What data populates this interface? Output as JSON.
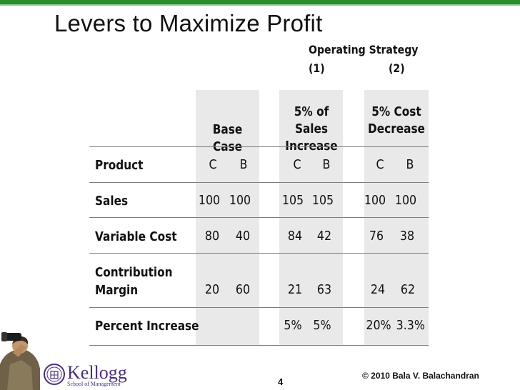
{
  "slide": {
    "title": "Levers to Maximize Profit",
    "page_number": "4",
    "copyright": "© 2010 Bala V. Balachandran",
    "accent_color": "#2e8b2e"
  },
  "strategy_header": {
    "label": "Operating Strategy",
    "col1": "(1)",
    "col2": "(2)"
  },
  "logo": {
    "name": "Kellogg",
    "subtitle": "School of Management"
  },
  "table": {
    "groups": [
      {
        "line1": "Base Case",
        "line2": ""
      },
      {
        "line1": "5% of Sales",
        "line2": "Increase"
      },
      {
        "line1": "5% Cost",
        "line2": "Decrease"
      }
    ],
    "rows": [
      {
        "label": [
          "Product"
        ],
        "values": [
          "C",
          "B",
          "C",
          "B",
          "C",
          "B"
        ]
      },
      {
        "label": [
          "Sales"
        ],
        "values": [
          "100",
          "100",
          "105",
          "105",
          "100",
          "100"
        ]
      },
      {
        "label": [
          "Variable Cost"
        ],
        "values": [
          "80",
          "40",
          "84",
          "42",
          "76",
          "38"
        ]
      },
      {
        "label": [
          "Contribution",
          "Margin"
        ],
        "values": [
          "20",
          "60",
          "21",
          "63",
          "24",
          "62"
        ]
      },
      {
        "label": [
          "Percent Increase"
        ],
        "values": [
          "",
          "",
          "5%",
          "5%",
          "20%",
          "3.3%"
        ]
      }
    ]
  }
}
